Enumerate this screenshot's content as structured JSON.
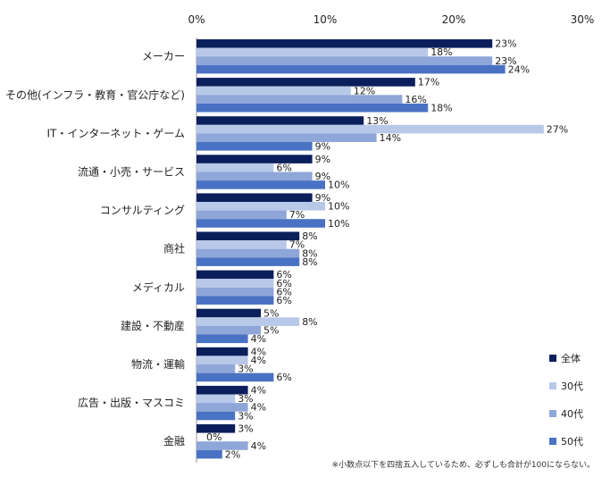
{
  "chart_data": {
    "type": "bar",
    "orientation": "horizontal",
    "xlim": [
      0,
      30
    ],
    "ticks": [
      {
        "value": 0,
        "label": "0%"
      },
      {
        "value": 10,
        "label": "10%"
      },
      {
        "value": 20,
        "label": "20%"
      },
      {
        "value": 30,
        "label": "30%"
      }
    ],
    "categories": [
      "メーカー",
      "その他(インフラ・教育・官公庁など)",
      "IT・インターネット・ゲーム",
      "流通・小売・サービス",
      "コンサルティング",
      "商社",
      "メディカル",
      "建設・不動産",
      "物流・運輸",
      "広告・出版・マスコミ",
      "金融"
    ],
    "series": [
      {
        "name": "全体",
        "color": "#0b1f5c",
        "values": [
          23,
          17,
          13,
          9,
          9,
          8,
          6,
          5,
          4,
          4,
          3
        ]
      },
      {
        "name": "30代",
        "color": "#b8c8e8",
        "values": [
          18,
          12,
          27,
          6,
          10,
          7,
          6,
          8,
          4,
          3,
          0
        ]
      },
      {
        "name": "40代",
        "color": "#8fa6d9",
        "values": [
          23,
          16,
          14,
          9,
          7,
          8,
          6,
          5,
          3,
          4,
          4
        ]
      },
      {
        "name": "50代",
        "color": "#4a72c4",
        "values": [
          24,
          18,
          9,
          10,
          10,
          8,
          6,
          4,
          6,
          3,
          2
        ]
      }
    ],
    "value_suffix": "%",
    "legend_position": "right",
    "grid": false
  },
  "footnote": "※小数点以下を四捨五入しているため、必ずしも合計が100にならない。"
}
